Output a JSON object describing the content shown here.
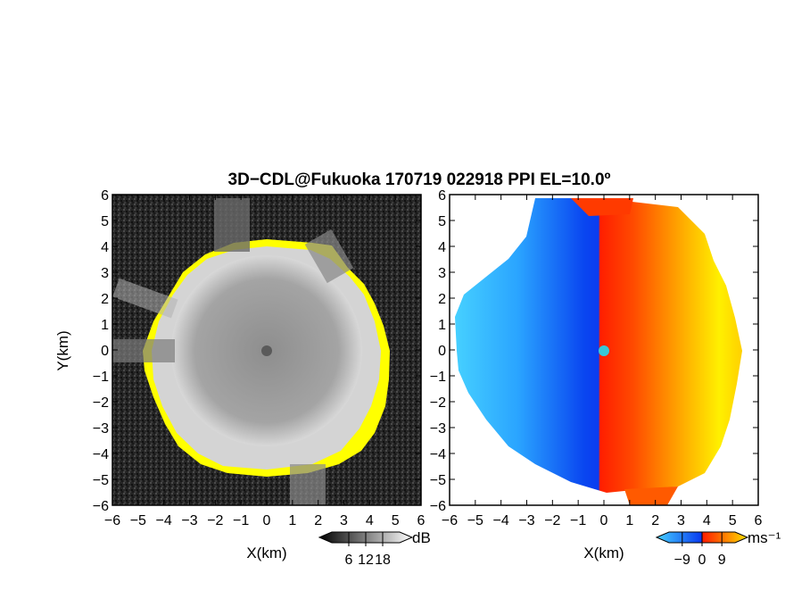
{
  "title": "3D−CDL@Fukuoka 170719 022918 PPI EL=10.0º",
  "colors": {
    "yellow": "#ffff00",
    "blue_dark": "#0a3cf0",
    "blue_light": "#3ec8ff",
    "red": "#ff2a00",
    "orange": "#ff8a00",
    "gray_center": "#9a9a9a",
    "gray_noise": "#2a2a2a",
    "center_dot": "#38c8d8"
  },
  "chart_data": [
    {
      "type": "heatmap",
      "name": "",
      "xlabel": "X(km)",
      "ylabel": "Y(km)",
      "xlim": [
        -6,
        6
      ],
      "ylim": [
        -6,
        6
      ],
      "x_ticks": [
        -6,
        -5,
        -4,
        -3,
        -2,
        -1,
        0,
        1,
        2,
        3,
        4,
        5,
        6
      ],
      "y_ticks": [
        -6,
        -5,
        -4,
        -3,
        -2,
        -1,
        0,
        1,
        2,
        3,
        4,
        5,
        6
      ],
      "colorbar": {
        "unit": "dB",
        "ticks": [
          6,
          12,
          18
        ],
        "colormap": "grayscale"
      },
      "radar_center": [
        0,
        0
      ],
      "echo_radius_km": 4.3
    },
    {
      "type": "heatmap",
      "name": "",
      "xlabel": "X(km)",
      "ylabel": "",
      "xlim": [
        -6,
        6
      ],
      "ylim": [
        -6,
        6
      ],
      "x_ticks": [
        -6,
        -5,
        -4,
        -3,
        -2,
        -1,
        0,
        1,
        2,
        3,
        4,
        5,
        6
      ],
      "y_ticks": [
        -6,
        -5,
        -4,
        -3,
        -2,
        -1,
        0,
        1,
        2,
        3,
        4,
        5,
        6
      ],
      "colorbar": {
        "unit": "ms⁻¹",
        "ticks": [
          -9,
          0,
          9
        ],
        "colormap": "blue-red"
      },
      "radar_center": [
        0,
        0
      ],
      "echo_radius_km": 5.8
    }
  ]
}
